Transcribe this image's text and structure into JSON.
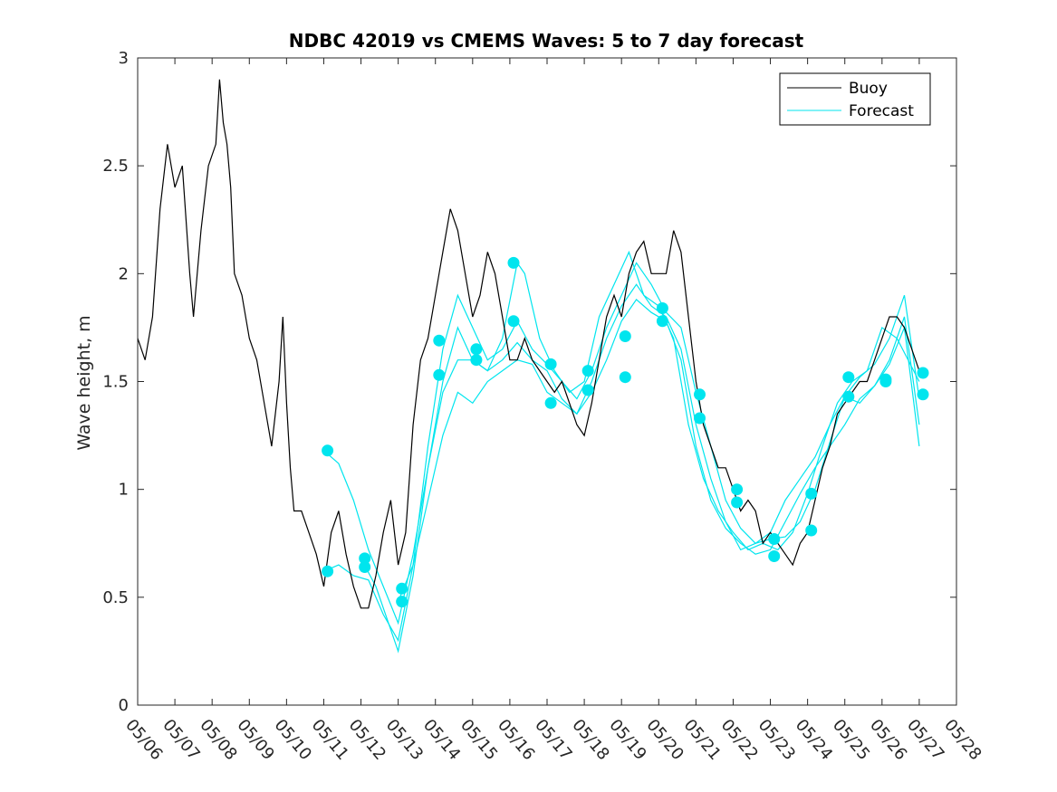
{
  "chart_data": {
    "type": "line",
    "title": "NDBC 42019 vs CMEMS Waves: 5 to 7 day forecast",
    "xlabel": "",
    "ylabel": "Wave height, m",
    "xlim": [
      "05/06",
      "05/28"
    ],
    "ylim": [
      0,
      3
    ],
    "y_ticks": [
      "0",
      "0.5",
      "1",
      "1.5",
      "2",
      "2.5",
      "3"
    ],
    "x_ticks": [
      "05/06",
      "05/07",
      "05/08",
      "05/09",
      "05/10",
      "05/11",
      "05/12",
      "05/13",
      "05/14",
      "05/15",
      "05/16",
      "05/17",
      "05/18",
      "05/19",
      "05/20",
      "05/21",
      "05/22",
      "05/23",
      "05/24",
      "05/25",
      "05/26",
      "05/27",
      "05/28"
    ],
    "legend": {
      "placement": "top-right",
      "entries": [
        "Buoy",
        "Forecast"
      ]
    },
    "colors": {
      "buoy": "#000000",
      "forecast": "#00e5ee",
      "marker": "#00e5ee"
    },
    "buoy": {
      "name": "Buoy",
      "points": [
        [
          0.0,
          1.7
        ],
        [
          0.2,
          1.6
        ],
        [
          0.4,
          1.8
        ],
        [
          0.6,
          2.3
        ],
        [
          0.8,
          2.6
        ],
        [
          1.0,
          2.4
        ],
        [
          1.2,
          2.5
        ],
        [
          1.4,
          2.0
        ],
        [
          1.5,
          1.8
        ],
        [
          1.7,
          2.2
        ],
        [
          1.9,
          2.5
        ],
        [
          2.1,
          2.6
        ],
        [
          2.2,
          2.9
        ],
        [
          2.3,
          2.7
        ],
        [
          2.4,
          2.6
        ],
        [
          2.5,
          2.4
        ],
        [
          2.6,
          2.0
        ],
        [
          2.8,
          1.9
        ],
        [
          3.0,
          1.7
        ],
        [
          3.2,
          1.6
        ],
        [
          3.4,
          1.4
        ],
        [
          3.6,
          1.2
        ],
        [
          3.8,
          1.5
        ],
        [
          3.9,
          1.8
        ],
        [
          4.0,
          1.4
        ],
        [
          4.1,
          1.1
        ],
        [
          4.2,
          0.9
        ],
        [
          4.4,
          0.9
        ],
        [
          4.6,
          0.8
        ],
        [
          4.8,
          0.7
        ],
        [
          5.0,
          0.55
        ],
        [
          5.2,
          0.8
        ],
        [
          5.4,
          0.9
        ],
        [
          5.6,
          0.7
        ],
        [
          5.8,
          0.55
        ],
        [
          6.0,
          0.45
        ],
        [
          6.2,
          0.45
        ],
        [
          6.4,
          0.6
        ],
        [
          6.6,
          0.8
        ],
        [
          6.8,
          0.95
        ],
        [
          6.9,
          0.8
        ],
        [
          7.0,
          0.65
        ],
        [
          7.2,
          0.8
        ],
        [
          7.4,
          1.3
        ],
        [
          7.6,
          1.6
        ],
        [
          7.8,
          1.7
        ],
        [
          8.0,
          1.9
        ],
        [
          8.2,
          2.1
        ],
        [
          8.4,
          2.3
        ],
        [
          8.6,
          2.2
        ],
        [
          8.8,
          2.0
        ],
        [
          9.0,
          1.8
        ],
        [
          9.2,
          1.9
        ],
        [
          9.4,
          2.1
        ],
        [
          9.6,
          2.0
        ],
        [
          9.8,
          1.8
        ],
        [
          10.0,
          1.6
        ],
        [
          10.2,
          1.6
        ],
        [
          10.4,
          1.7
        ],
        [
          10.6,
          1.6
        ],
        [
          10.8,
          1.55
        ],
        [
          11.0,
          1.5
        ],
        [
          11.2,
          1.45
        ],
        [
          11.4,
          1.5
        ],
        [
          11.6,
          1.4
        ],
        [
          11.8,
          1.3
        ],
        [
          12.0,
          1.25
        ],
        [
          12.2,
          1.4
        ],
        [
          12.4,
          1.6
        ],
        [
          12.6,
          1.8
        ],
        [
          12.8,
          1.9
        ],
        [
          13.0,
          1.8
        ],
        [
          13.2,
          2.0
        ],
        [
          13.4,
          2.1
        ],
        [
          13.6,
          2.15
        ],
        [
          13.8,
          2.0
        ],
        [
          14.0,
          2.0
        ],
        [
          14.2,
          2.0
        ],
        [
          14.4,
          2.2
        ],
        [
          14.6,
          2.1
        ],
        [
          14.8,
          1.8
        ],
        [
          15.0,
          1.5
        ],
        [
          15.2,
          1.3
        ],
        [
          15.4,
          1.2
        ],
        [
          15.6,
          1.1
        ],
        [
          15.8,
          1.1
        ],
        [
          16.0,
          1.0
        ],
        [
          16.2,
          0.9
        ],
        [
          16.4,
          0.95
        ],
        [
          16.6,
          0.9
        ],
        [
          16.8,
          0.75
        ],
        [
          17.0,
          0.8
        ],
        [
          17.2,
          0.75
        ],
        [
          17.4,
          0.7
        ],
        [
          17.6,
          0.65
        ],
        [
          17.8,
          0.75
        ],
        [
          18.0,
          0.8
        ],
        [
          18.2,
          0.95
        ],
        [
          18.4,
          1.1
        ],
        [
          18.6,
          1.2
        ],
        [
          18.8,
          1.35
        ],
        [
          19.0,
          1.4
        ],
        [
          19.2,
          1.45
        ],
        [
          19.4,
          1.5
        ],
        [
          19.6,
          1.5
        ],
        [
          19.8,
          1.6
        ],
        [
          20.0,
          1.7
        ],
        [
          20.2,
          1.8
        ],
        [
          20.4,
          1.8
        ],
        [
          20.6,
          1.75
        ],
        [
          20.8,
          1.65
        ],
        [
          21.0,
          1.55
        ]
      ]
    },
    "forecast_series": [
      {
        "points": [
          [
            5.0,
            1.18
          ],
          [
            5.4,
            1.12
          ],
          [
            5.8,
            0.95
          ],
          [
            6.2,
            0.72
          ],
          [
            6.6,
            0.55
          ],
          [
            7.0,
            0.38
          ],
          [
            7.4,
            0.7
          ],
          [
            7.8,
            1.1
          ],
          [
            8.2,
            1.5
          ],
          [
            8.6,
            1.75
          ],
          [
            9.0,
            1.6
          ],
          [
            9.4,
            1.55
          ],
          [
            9.8,
            1.7
          ],
          [
            10.2,
            2.05
          ],
          [
            10.4,
            2.0
          ],
          [
            10.8,
            1.7
          ],
          [
            11.2,
            1.55
          ],
          [
            11.6,
            1.45
          ],
          [
            12.0,
            1.5
          ],
          [
            12.4,
            1.8
          ],
          [
            12.8,
            1.95
          ],
          [
            13.2,
            2.1
          ],
          [
            13.6,
            1.9
          ],
          [
            14.0,
            1.85
          ],
          [
            14.4,
            1.7
          ],
          [
            14.8,
            1.3
          ],
          [
            15.2,
            1.05
          ],
          [
            15.6,
            0.9
          ],
          [
            16.0,
            0.8
          ],
          [
            16.4,
            0.72
          ],
          [
            16.8,
            0.75
          ],
          [
            17.2,
            0.72
          ],
          [
            17.6,
            0.8
          ],
          [
            18.0,
            0.98
          ],
          [
            18.4,
            1.2
          ],
          [
            18.8,
            1.4
          ],
          [
            19.2,
            1.5
          ],
          [
            19.6,
            1.55
          ],
          [
            20.0,
            1.75
          ],
          [
            20.4,
            1.7
          ],
          [
            21.0,
            1.5
          ]
        ]
      },
      {
        "points": [
          [
            5.0,
            0.62
          ],
          [
            5.4,
            0.65
          ],
          [
            5.8,
            0.6
          ],
          [
            6.2,
            0.58
          ],
          [
            6.6,
            0.42
          ],
          [
            7.0,
            0.3
          ],
          [
            7.4,
            0.65
          ],
          [
            7.8,
            1.2
          ],
          [
            8.2,
            1.65
          ],
          [
            8.6,
            1.9
          ],
          [
            9.0,
            1.75
          ],
          [
            9.4,
            1.6
          ],
          [
            9.8,
            1.65
          ],
          [
            10.2,
            1.78
          ],
          [
            10.6,
            1.65
          ],
          [
            11.0,
            1.58
          ],
          [
            11.4,
            1.5
          ],
          [
            11.8,
            1.42
          ],
          [
            12.2,
            1.55
          ],
          [
            12.6,
            1.75
          ],
          [
            13.0,
            1.9
          ],
          [
            13.4,
            2.05
          ],
          [
            13.8,
            1.95
          ],
          [
            14.2,
            1.82
          ],
          [
            14.6,
            1.75
          ],
          [
            15.0,
            1.45
          ],
          [
            15.4,
            1.2
          ],
          [
            15.8,
            0.95
          ],
          [
            16.2,
            0.82
          ],
          [
            16.6,
            0.75
          ],
          [
            17.0,
            0.77
          ],
          [
            17.4,
            0.78
          ],
          [
            17.8,
            0.85
          ],
          [
            18.2,
            1.0
          ],
          [
            18.6,
            1.22
          ],
          [
            19.0,
            1.43
          ],
          [
            19.4,
            1.52
          ],
          [
            19.8,
            1.58
          ],
          [
            20.2,
            1.7
          ],
          [
            20.6,
            1.9
          ],
          [
            21.0,
            1.42
          ]
        ]
      },
      {
        "points": [
          [
            6.0,
            0.68
          ],
          [
            6.4,
            0.55
          ],
          [
            6.8,
            0.35
          ],
          [
            7.0,
            0.25
          ],
          [
            7.4,
            0.6
          ],
          [
            7.8,
            1.1
          ],
          [
            8.2,
            1.45
          ],
          [
            8.6,
            1.6
          ],
          [
            9.0,
            1.6
          ],
          [
            9.4,
            1.55
          ],
          [
            9.8,
            1.6
          ],
          [
            10.2,
            1.68
          ],
          [
            10.6,
            1.6
          ],
          [
            11.0,
            1.55
          ],
          [
            11.4,
            1.42
          ],
          [
            11.8,
            1.35
          ],
          [
            12.2,
            1.5
          ],
          [
            12.6,
            1.7
          ],
          [
            13.0,
            1.85
          ],
          [
            13.4,
            1.95
          ],
          [
            13.8,
            1.85
          ],
          [
            14.2,
            1.8
          ],
          [
            14.6,
            1.65
          ],
          [
            15.0,
            1.3
          ],
          [
            15.4,
            1.05
          ],
          [
            15.8,
            0.85
          ],
          [
            16.2,
            0.72
          ],
          [
            16.6,
            0.75
          ],
          [
            17.0,
            0.8
          ],
          [
            17.4,
            0.95
          ],
          [
            17.8,
            1.05
          ],
          [
            18.2,
            1.15
          ],
          [
            18.6,
            1.3
          ],
          [
            19.0,
            1.43
          ],
          [
            19.4,
            1.4
          ],
          [
            19.8,
            1.48
          ],
          [
            20.2,
            1.6
          ],
          [
            20.6,
            1.8
          ],
          [
            21.0,
            1.3
          ]
        ]
      },
      {
        "points": [
          [
            7.0,
            0.48
          ],
          [
            7.4,
            0.65
          ],
          [
            7.8,
            0.95
          ],
          [
            8.2,
            1.25
          ],
          [
            8.6,
            1.45
          ],
          [
            9.0,
            1.4
          ],
          [
            9.4,
            1.5
          ],
          [
            9.8,
            1.55
          ],
          [
            10.2,
            1.6
          ],
          [
            10.6,
            1.58
          ],
          [
            11.0,
            1.45
          ],
          [
            11.4,
            1.4
          ],
          [
            11.8,
            1.35
          ],
          [
            12.2,
            1.45
          ],
          [
            12.6,
            1.6
          ],
          [
            13.0,
            1.78
          ],
          [
            13.4,
            1.88
          ],
          [
            13.8,
            1.82
          ],
          [
            14.2,
            1.78
          ],
          [
            14.6,
            1.6
          ],
          [
            15.0,
            1.2
          ],
          [
            15.4,
            0.95
          ],
          [
            15.8,
            0.82
          ],
          [
            16.2,
            0.75
          ],
          [
            16.6,
            0.7
          ],
          [
            17.0,
            0.72
          ],
          [
            17.4,
            0.85
          ],
          [
            17.8,
            0.98
          ],
          [
            18.2,
            1.1
          ],
          [
            18.6,
            1.2
          ],
          [
            19.0,
            1.3
          ],
          [
            19.4,
            1.42
          ],
          [
            19.8,
            1.48
          ],
          [
            20.2,
            1.58
          ],
          [
            20.6,
            1.75
          ],
          [
            21.0,
            1.2
          ]
        ]
      }
    ],
    "forecast_markers": [
      [
        5.1,
        1.18
      ],
      [
        5.1,
        0.62
      ],
      [
        6.1,
        0.68
      ],
      [
        6.1,
        0.64
      ],
      [
        7.1,
        0.54
      ],
      [
        7.1,
        0.48
      ],
      [
        8.1,
        1.69
      ],
      [
        8.1,
        1.53
      ],
      [
        9.1,
        1.65
      ],
      [
        9.1,
        1.6
      ],
      [
        10.1,
        2.05
      ],
      [
        10.1,
        1.78
      ],
      [
        11.1,
        1.58
      ],
      [
        11.1,
        1.4
      ],
      [
        12.1,
        1.55
      ],
      [
        12.1,
        1.46
      ],
      [
        13.1,
        1.71
      ],
      [
        13.1,
        1.52
      ],
      [
        14.1,
        1.84
      ],
      [
        14.1,
        1.78
      ],
      [
        15.1,
        1.44
      ],
      [
        15.1,
        1.33
      ],
      [
        16.1,
        1.0
      ],
      [
        16.1,
        0.94
      ],
      [
        17.1,
        0.77
      ],
      [
        17.1,
        0.69
      ],
      [
        18.1,
        0.98
      ],
      [
        18.1,
        0.81
      ],
      [
        19.1,
        1.52
      ],
      [
        19.1,
        1.43
      ],
      [
        20.1,
        1.5
      ],
      [
        20.1,
        1.51
      ],
      [
        21.1,
        1.54
      ],
      [
        21.1,
        1.44
      ]
    ]
  }
}
